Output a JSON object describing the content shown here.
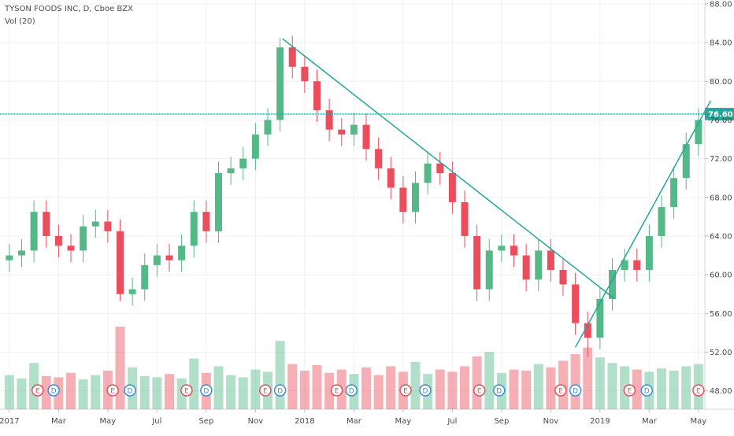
{
  "chart_data": {
    "type": "candlestick",
    "title": "TYSON FOODS INC, D, Cboe BZX",
    "indicator": "Vol (20)",
    "x": [
      0,
      0.5,
      1,
      1.5,
      2,
      2.5,
      3,
      3.5,
      4,
      4.5,
      5,
      5.5,
      6,
      6.5,
      7,
      7.5,
      8,
      8.5,
      9,
      9.5,
      10,
      10.5,
      11,
      11.5,
      12,
      12.5,
      13,
      13.5,
      14,
      14.5,
      15,
      15.5,
      16,
      16.5,
      17,
      17.5,
      18,
      18.5,
      19,
      19.5,
      20,
      20.5,
      21,
      21.5,
      22,
      22.5,
      23,
      23.5,
      24,
      24.5,
      25,
      25.5,
      26,
      26.5,
      27,
      27.5,
      28
    ],
    "open": [
      61.5,
      62.0,
      62.5,
      66.5,
      64.0,
      63.0,
      62.5,
      65.0,
      65.5,
      64.5,
      58.0,
      58.5,
      61.0,
      62.0,
      61.5,
      63.0,
      66.5,
      64.5,
      70.5,
      71.0,
      72.0,
      74.5,
      76.0,
      83.5,
      81.5,
      80.0,
      77.0,
      75.0,
      74.5,
      75.5,
      73.0,
      71.0,
      69.0,
      66.5,
      69.5,
      71.5,
      70.5,
      67.5,
      64.0,
      58.5,
      62.5,
      63.0,
      62.0,
      59.5,
      62.5,
      60.5,
      59.0,
      55.0,
      53.5,
      57.5,
      60.5,
      61.5,
      60.5,
      64.0,
      67.0,
      70.0,
      73.5
    ],
    "high": [
      63.2,
      63.7,
      67.7,
      67.7,
      65.2,
      64.2,
      66.2,
      66.7,
      66.7,
      65.7,
      59.7,
      62.2,
      63.2,
      63.2,
      64.2,
      67.7,
      67.7,
      71.7,
      72.2,
      73.2,
      75.7,
      77.2,
      84.5,
      84.7,
      82.7,
      81.2,
      78.2,
      76.2,
      76.7,
      76.7,
      74.2,
      72.2,
      70.2,
      70.7,
      72.7,
      72.7,
      71.7,
      68.7,
      65.2,
      63.7,
      64.2,
      64.2,
      63.2,
      63.7,
      63.7,
      61.7,
      60.2,
      56.2,
      58.7,
      61.7,
      62.7,
      62.7,
      65.2,
      68.2,
      71.2,
      74.7,
      77.2
    ],
    "low": [
      60.3,
      60.8,
      61.3,
      62.8,
      61.8,
      61.3,
      61.3,
      63.8,
      63.3,
      57.3,
      56.8,
      57.3,
      59.8,
      60.3,
      60.3,
      61.8,
      63.3,
      63.3,
      69.3,
      69.8,
      70.8,
      73.3,
      74.8,
      80.3,
      78.8,
      75.8,
      73.8,
      73.3,
      73.3,
      71.8,
      69.8,
      67.8,
      65.3,
      65.3,
      68.3,
      69.3,
      66.3,
      62.8,
      57.3,
      57.3,
      61.3,
      60.8,
      58.3,
      58.3,
      59.3,
      57.8,
      53.8,
      51.5,
      52.3,
      56.3,
      59.3,
      59.3,
      59.3,
      62.8,
      65.8,
      68.8,
      72.3
    ],
    "close": [
      62.0,
      62.5,
      66.5,
      64.0,
      63.0,
      62.5,
      65.0,
      65.5,
      64.5,
      58.0,
      58.5,
      61.0,
      62.0,
      61.5,
      63.0,
      66.5,
      64.5,
      70.5,
      71.0,
      72.0,
      74.5,
      76.0,
      83.5,
      81.5,
      80.0,
      77.0,
      75.0,
      74.5,
      75.5,
      73.0,
      71.0,
      69.0,
      66.5,
      69.5,
      71.5,
      70.5,
      67.5,
      64.0,
      58.5,
      62.5,
      63.0,
      62.0,
      59.5,
      62.5,
      60.5,
      59.0,
      55.0,
      53.5,
      57.5,
      60.5,
      61.5,
      60.5,
      64.0,
      67.0,
      70.0,
      73.5,
      76.0
    ],
    "volume": [
      3.1,
      2.8,
      4.2,
      3.0,
      2.9,
      3.3,
      2.7,
      3.1,
      3.5,
      7.5,
      3.8,
      3.0,
      2.9,
      3.2,
      2.8,
      4.6,
      3.3,
      3.9,
      3.1,
      2.9,
      3.6,
      3.4,
      6.2,
      4.1,
      3.5,
      4.0,
      3.3,
      3.6,
      3.2,
      3.8,
      3.1,
      3.9,
      3.4,
      4.3,
      3.2,
      3.6,
      3.4,
      3.9,
      4.8,
      5.2,
      3.3,
      3.6,
      3.5,
      4.1,
      3.8,
      4.4,
      5.0,
      5.6,
      4.7,
      4.2,
      3.9,
      3.6,
      3.4,
      3.7,
      3.5,
      3.9,
      4.1
    ],
    "up_color": "#53b987",
    "down_color": "#eb4d5c",
    "xlim": [
      -0.38,
      28.26
    ],
    "xticks": [
      {
        "value": 0,
        "label": "2017"
      },
      {
        "value": 2,
        "label": "Mar"
      },
      {
        "value": 4,
        "label": "May"
      },
      {
        "value": 6,
        "label": "Jul"
      },
      {
        "value": 8,
        "label": "Sep"
      },
      {
        "value": 10,
        "label": "Nov"
      },
      {
        "value": 12,
        "label": "2018"
      },
      {
        "value": 14,
        "label": "Mar"
      },
      {
        "value": 16,
        "label": "May"
      },
      {
        "value": 18,
        "label": "Jul"
      },
      {
        "value": 20,
        "label": "Sep"
      },
      {
        "value": 22,
        "label": "Nov"
      },
      {
        "value": 24,
        "label": "2019"
      },
      {
        "value": 26,
        "label": "Mar"
      },
      {
        "value": 28,
        "label": "May"
      }
    ],
    "ylim": [
      46.1,
      88.4
    ],
    "yticks": [
      {
        "value": 48,
        "label": "48.00"
      },
      {
        "value": 52,
        "label": "52.00"
      },
      {
        "value": 56,
        "label": "56.00"
      },
      {
        "value": 60,
        "label": "60.00"
      },
      {
        "value": 64,
        "label": "64.00"
      },
      {
        "value": 68,
        "label": "68.00"
      },
      {
        "value": 72,
        "label": "72.00"
      },
      {
        "value": 76,
        "label": "76.00"
      },
      {
        "value": 80,
        "label": "80.00"
      },
      {
        "value": 84,
        "label": "84.00"
      },
      {
        "value": 88,
        "label": "88.00"
      }
    ],
    "grid": true,
    "price_line": {
      "value": 76.6,
      "label": "76.60",
      "color": "#26a69a"
    },
    "trendlines": [
      {
        "x": [
          11.1,
          24.6
        ],
        "y": [
          84.4,
          57.5
        ]
      },
      {
        "x": [
          23.0,
          28.5
        ],
        "y": [
          52.5,
          78.0
        ]
      }
    ],
    "events": [
      {
        "x": 1.15,
        "label": "E"
      },
      {
        "x": 1.8,
        "label": "D"
      },
      {
        "x": 4.2,
        "label": "E"
      },
      {
        "x": 4.9,
        "label": "D"
      },
      {
        "x": 7.2,
        "label": "E"
      },
      {
        "x": 8.0,
        "label": "D"
      },
      {
        "x": 10.4,
        "label": "E"
      },
      {
        "x": 11.0,
        "label": "D"
      },
      {
        "x": 13.3,
        "label": "E"
      },
      {
        "x": 13.9,
        "label": "D"
      },
      {
        "x": 16.1,
        "label": "E"
      },
      {
        "x": 16.9,
        "label": "D"
      },
      {
        "x": 19.1,
        "label": "E"
      },
      {
        "x": 19.9,
        "label": "D"
      },
      {
        "x": 22.4,
        "label": "E"
      },
      {
        "x": 23.0,
        "label": "D"
      },
      {
        "x": 25.2,
        "label": "E"
      },
      {
        "x": 25.9,
        "label": "D"
      },
      {
        "x": 28.0,
        "label": "E"
      }
    ]
  }
}
